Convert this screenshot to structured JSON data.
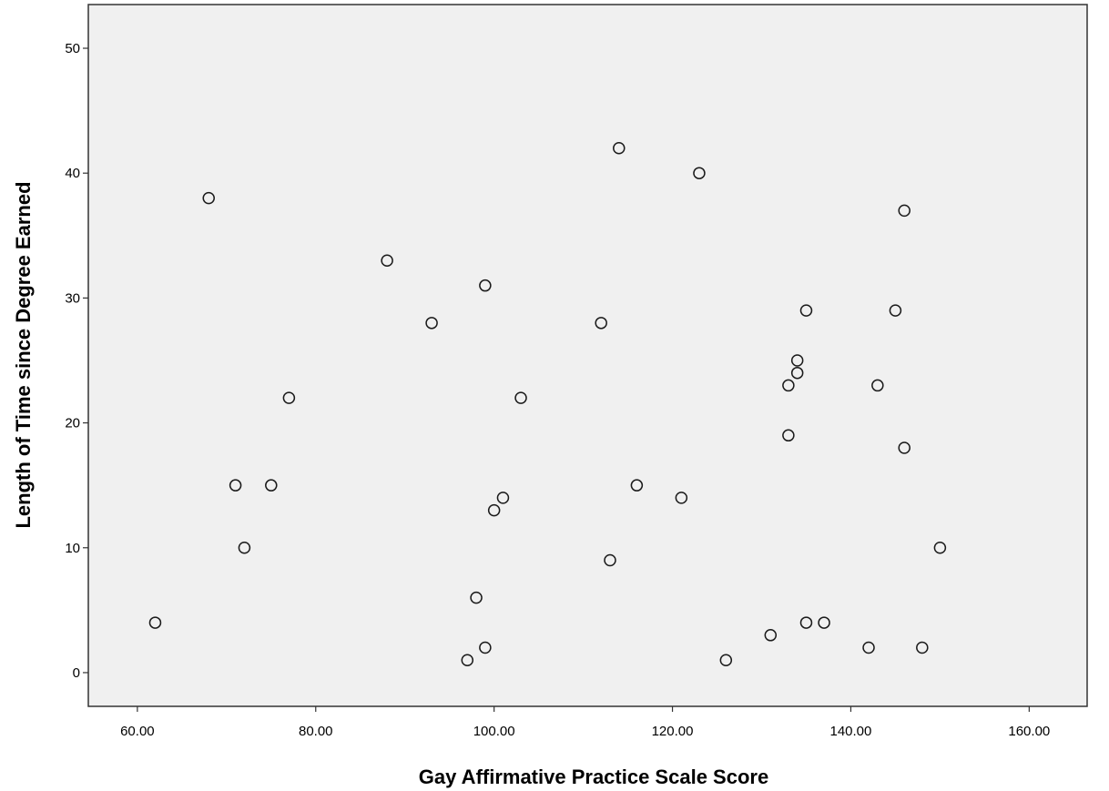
{
  "chart_data": {
    "type": "scatter",
    "title": "",
    "xlabel": "Gay Affirmative Practice Scale Score",
    "ylabel": "Length of Time since Degree Earned",
    "xlim": [
      54.5,
      166.5
    ],
    "ylim": [
      -2.7,
      53.5
    ],
    "x_ticks": [
      "60.00",
      "80.00",
      "100.00",
      "120.00",
      "140.00",
      "160.00"
    ],
    "x_tick_values": [
      60,
      80,
      100,
      120,
      140,
      160
    ],
    "y_ticks": [
      "0",
      "10",
      "20",
      "30",
      "40",
      "50"
    ],
    "y_tick_values": [
      0,
      10,
      20,
      30,
      40,
      50
    ],
    "grid": false,
    "plot_background": "#f0f0f0",
    "marker": "hollow-circle",
    "points": [
      {
        "x": 62,
        "y": 4
      },
      {
        "x": 68,
        "y": 38
      },
      {
        "x": 71,
        "y": 15
      },
      {
        "x": 72,
        "y": 10
      },
      {
        "x": 75,
        "y": 15
      },
      {
        "x": 77,
        "y": 22
      },
      {
        "x": 88,
        "y": 33
      },
      {
        "x": 93,
        "y": 28
      },
      {
        "x": 97,
        "y": 1
      },
      {
        "x": 98,
        "y": 6
      },
      {
        "x": 99,
        "y": 2
      },
      {
        "x": 99,
        "y": 31
      },
      {
        "x": 100,
        "y": 13
      },
      {
        "x": 101,
        "y": 14
      },
      {
        "x": 103,
        "y": 22
      },
      {
        "x": 112,
        "y": 28
      },
      {
        "x": 113,
        "y": 9
      },
      {
        "x": 114,
        "y": 42
      },
      {
        "x": 116,
        "y": 15
      },
      {
        "x": 121,
        "y": 14
      },
      {
        "x": 123,
        "y": 40
      },
      {
        "x": 126,
        "y": 1
      },
      {
        "x": 131,
        "y": 3
      },
      {
        "x": 133,
        "y": 19
      },
      {
        "x": 133,
        "y": 23
      },
      {
        "x": 134,
        "y": 24
      },
      {
        "x": 134,
        "y": 25
      },
      {
        "x": 135,
        "y": 4
      },
      {
        "x": 135,
        "y": 29
      },
      {
        "x": 137,
        "y": 4
      },
      {
        "x": 142,
        "y": 2
      },
      {
        "x": 143,
        "y": 23
      },
      {
        "x": 145,
        "y": 29
      },
      {
        "x": 146,
        "y": 18
      },
      {
        "x": 146,
        "y": 37
      },
      {
        "x": 148,
        "y": 2
      },
      {
        "x": 150,
        "y": 10
      }
    ]
  }
}
